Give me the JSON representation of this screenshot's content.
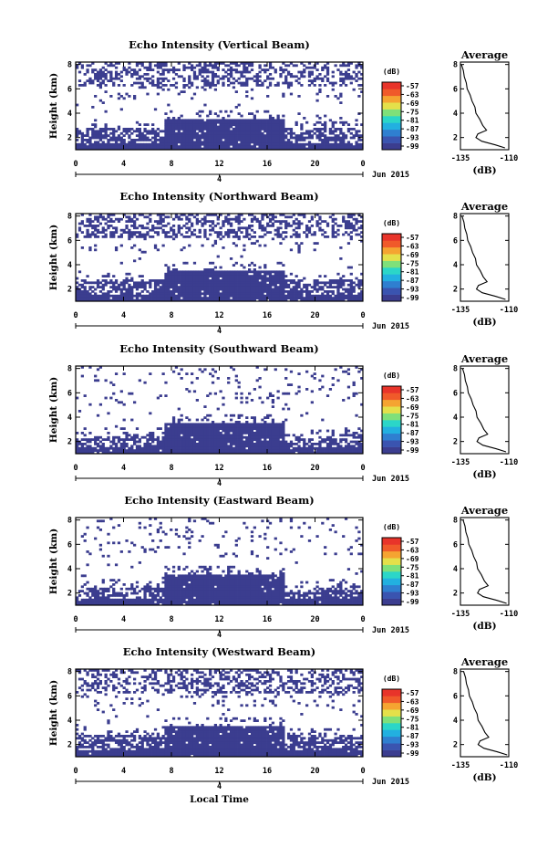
{
  "chart_data": {
    "type": "heatmap",
    "colorbar": {
      "unit": "(dB)",
      "tick_labels": [
        "-57",
        "-63",
        "-69",
        "-75",
        "-81",
        "-87",
        "-93",
        "-99"
      ],
      "range": [
        -99,
        -57
      ],
      "colors": [
        "#3b3d8f",
        "#3a54b0",
        "#2f7fd0",
        "#22b0e0",
        "#2bd6c8",
        "#7fe07a",
        "#e4e04a",
        "#f5a431",
        "#f05a2a",
        "#e8342a"
      ]
    },
    "panels": [
      {
        "title": "Echo Intensity (Vertical Beam)",
        "avg_title": "Average"
      },
      {
        "title": "Echo Intensity (Northward Beam)",
        "avg_title": "Average"
      },
      {
        "title": "Echo Intensity (Southward Beam)",
        "avg_title": "Average"
      },
      {
        "title": "Echo Intensity (Eastward Beam)",
        "avg_title": "Average"
      },
      {
        "title": "Echo Intensity (Westward Beam)",
        "avg_title": "Average"
      }
    ],
    "ylabel": "Height (km)",
    "y_ticks": [
      "2",
      "4",
      "6",
      "8"
    ],
    "ylim": [
      1,
      8.2
    ],
    "x_ticks": [
      "0",
      "4",
      "8",
      "12",
      "16",
      "20",
      "0"
    ],
    "xlim": [
      0,
      24
    ],
    "date_marker": "4",
    "date_label": "Jun 2015",
    "xlabel": "Local Time",
    "avg_x_ticks": [
      "-135",
      "-110"
    ],
    "avg_xlabel": "(dB)",
    "avg_y_ticks": [
      "2",
      "4",
      "6",
      "8"
    ],
    "avg_xlim": [
      -135,
      -110
    ],
    "avg_profile": [
      {
        "h": 8.0,
        "db": -134.5
      },
      {
        "h": 7.5,
        "db": -133.5
      },
      {
        "h": 7.0,
        "db": -133
      },
      {
        "h": 6.5,
        "db": -132
      },
      {
        "h": 6.0,
        "db": -131.5
      },
      {
        "h": 5.5,
        "db": -130
      },
      {
        "h": 5.0,
        "db": -129
      },
      {
        "h": 4.5,
        "db": -127.5
      },
      {
        "h": 4.0,
        "db": -127
      },
      {
        "h": 3.5,
        "db": -125
      },
      {
        "h": 3.0,
        "db": -123.5
      },
      {
        "h": 2.6,
        "db": -121.5
      },
      {
        "h": 2.3,
        "db": -126
      },
      {
        "h": 2.0,
        "db": -127
      },
      {
        "h": 1.7,
        "db": -124
      },
      {
        "h": 1.4,
        "db": -117
      },
      {
        "h": 1.15,
        "db": -112
      }
    ]
  }
}
